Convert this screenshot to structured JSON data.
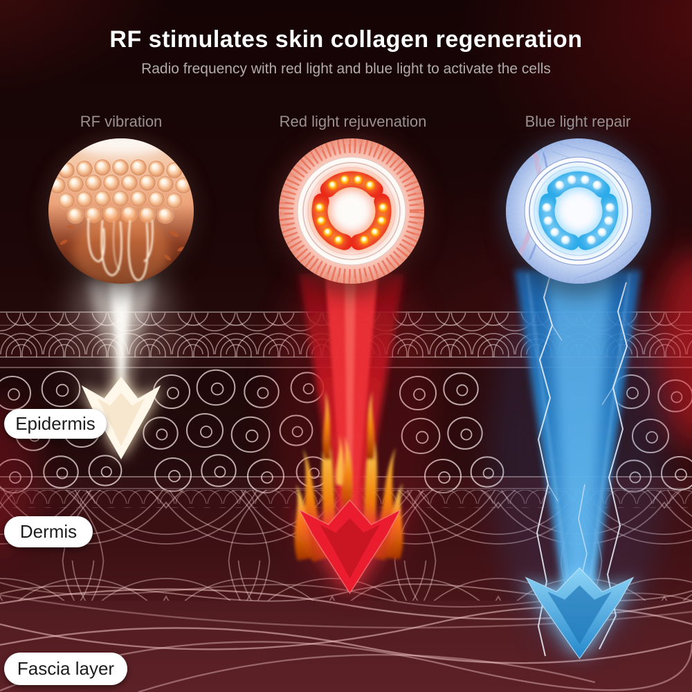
{
  "header": {
    "title": "RF stimulates skin collagen regeneration",
    "subtitle": "Radio frequency with red light and blue light to activate the cells"
  },
  "columns": [
    {
      "label": "RF vibration",
      "icon": "skin-cells-rf-vibration-photo",
      "beam_color": "#fdf4e3"
    },
    {
      "label": "Red light rejuvenation",
      "icon": "red-led-device-head",
      "beam_color": "#e32128"
    },
    {
      "label": "Blue light repair",
      "icon": "blue-led-device-head",
      "beam_color": "#3395dc"
    }
  ],
  "skin_layers": [
    {
      "label": "Epidermis"
    },
    {
      "label": "Dermis"
    },
    {
      "label": "Fascia layer"
    }
  ],
  "colors": {
    "background_dark": "#1b0607",
    "background_fascia": "#5c2127",
    "title_text": "#ffffff",
    "subtitle_text": "#b3abab",
    "column_label_text": "#9b9191",
    "pill_background": "#ffffff",
    "pill_text": "#1d1d1d",
    "red_led": "#ea2418",
    "blue_led": "#28a8e8",
    "flame_orange": "#f08008",
    "lightning_white": "#eef5ff"
  }
}
